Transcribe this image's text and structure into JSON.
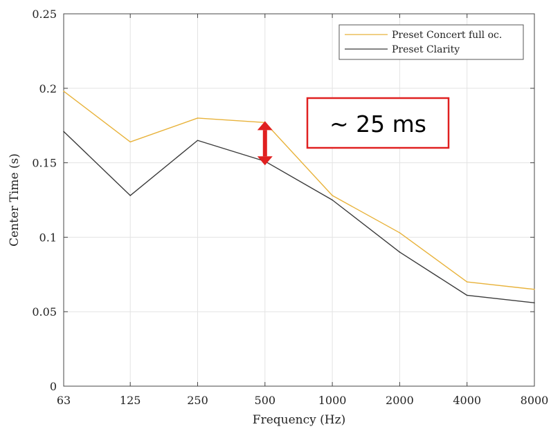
{
  "chart_data": {
    "type": "line",
    "categories": [
      "63",
      "125",
      "250",
      "500",
      "1000",
      "2000",
      "4000",
      "8000"
    ],
    "x": [
      63,
      125,
      250,
      500,
      1000,
      2000,
      4000,
      8000
    ],
    "xscale": "log",
    "xlabel": "Frequency (Hz)",
    "ylabel": "Center Time (s)",
    "ylim": [
      0,
      0.25
    ],
    "yticks": [
      0,
      0.05,
      0.1,
      0.15,
      0.2,
      0.25
    ],
    "ytick_labels": [
      "0",
      "0.05",
      "0.1",
      "0.15",
      "0.2",
      "0.25"
    ],
    "grid": true,
    "legend_position": "top-right",
    "series": [
      {
        "name": "Preset Concert full oc.",
        "color": "#e8b23a",
        "values": [
          0.198,
          0.164,
          0.18,
          0.177,
          0.128,
          0.103,
          0.07,
          0.065
        ]
      },
      {
        "name": "Preset Clarity",
        "color": "#3a3a3a",
        "values": [
          0.171,
          0.128,
          0.165,
          0.151,
          0.125,
          0.09,
          0.061,
          0.056
        ]
      }
    ],
    "annotation": {
      "text": "~ 25 ms",
      "box_color": "#e02020",
      "arrow_color": "#e02020",
      "arrow_x": 500,
      "arrow_from": 0.152,
      "arrow_to": 0.177
    }
  }
}
